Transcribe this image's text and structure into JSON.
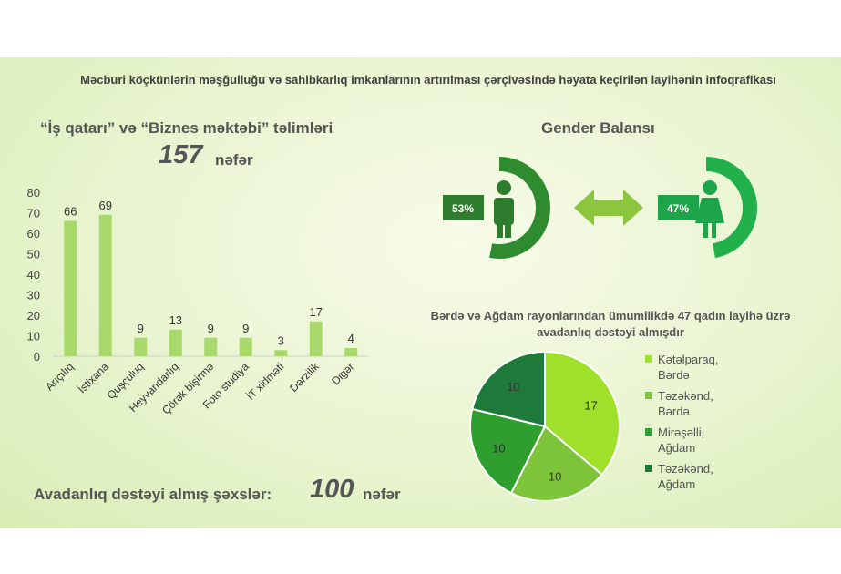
{
  "header": {
    "title": "Məcburi köçkünlərin məşğulluğu və sahibkarlıq imkanlarının artırılması çərçivəsində həyata keçirilən layihənin infoqrafikası"
  },
  "training": {
    "title": "“İş qatarı” və “Biznes məktəbi” təlimləri",
    "count": "157",
    "unit": "nəfər"
  },
  "equipment": {
    "label": "Avadanlıq dəstəyi almış şəxslər:",
    "count": "100",
    "unit": "nəfər"
  },
  "gender": {
    "title": "Gender Balansı",
    "male_percent": "53%",
    "female_percent": "47%",
    "male_value": 53,
    "female_value": 47,
    "colors": {
      "male": "#2e8b2e",
      "female": "#22b04b",
      "arrow": "#8cc63f"
    }
  },
  "chart_data": [
    {
      "type": "bar",
      "categories": [
        "Arıçılıq",
        "İstixana",
        "Quşçuluq",
        "Heyvandarlıq",
        "Çörək bişirmə",
        "Foto studiya",
        "İT xidməti",
        "Dərzilik",
        "Digər"
      ],
      "values": [
        66,
        69,
        9,
        13,
        9,
        9,
        3,
        17,
        4
      ],
      "ylim": [
        0,
        80
      ],
      "yticks": [
        0,
        10,
        20,
        30,
        40,
        50,
        60,
        70,
        80
      ],
      "grid": false,
      "color": "#a8d96a"
    },
    {
      "type": "pie",
      "title": "Bərdə və Ağdam rayonlarından ümumilikdə 47 qadın layihə üzrə avadanlıq dəstəyi almışdır",
      "labels": [
        "Kətəlparaq,\nBərdə",
        "Təzəkənd,\nBərdə",
        "Mirəşəlli,\nAğdam",
        "Təzəkənd,\nAğdam"
      ],
      "values": [
        17,
        10,
        10,
        10
      ],
      "colors": [
        "#9ee02a",
        "#7ec43a",
        "#2e9e2e",
        "#1e7a3a"
      ],
      "legend": "right"
    }
  ]
}
